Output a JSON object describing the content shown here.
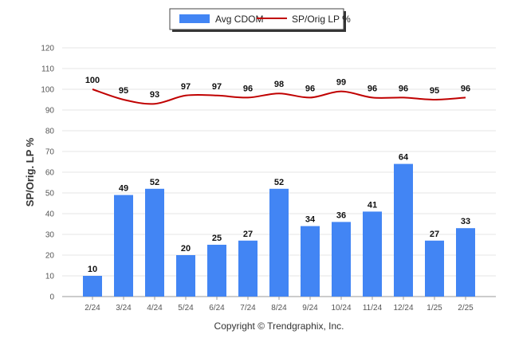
{
  "chart_data": {
    "type": "bar",
    "categories": [
      "2/24",
      "3/24",
      "4/24",
      "5/24",
      "6/24",
      "7/24",
      "8/24",
      "9/24",
      "10/24",
      "11/24",
      "12/24",
      "1/25",
      "2/25"
    ],
    "series": [
      {
        "name": "Avg CDOM",
        "type": "bar",
        "color": "#4285f4",
        "values": [
          10,
          49,
          52,
          20,
          25,
          27,
          52,
          34,
          36,
          41,
          64,
          27,
          33
        ]
      },
      {
        "name": "SP/Orig LP %",
        "type": "line",
        "color": "#c00000",
        "values": [
          100,
          95,
          93,
          97,
          97,
          96,
          98,
          96,
          99,
          96,
          96,
          95,
          96
        ]
      }
    ],
    "ylabel": "SP/Orig. LP %",
    "ylim": [
      0,
      120
    ],
    "yticks": [
      0,
      10,
      20,
      30,
      40,
      50,
      60,
      70,
      80,
      90,
      100,
      110,
      120
    ],
    "grid": true,
    "legend_position": "top-center"
  },
  "footer": {
    "copyright": "Copyright © Trendgraphix, Inc."
  }
}
